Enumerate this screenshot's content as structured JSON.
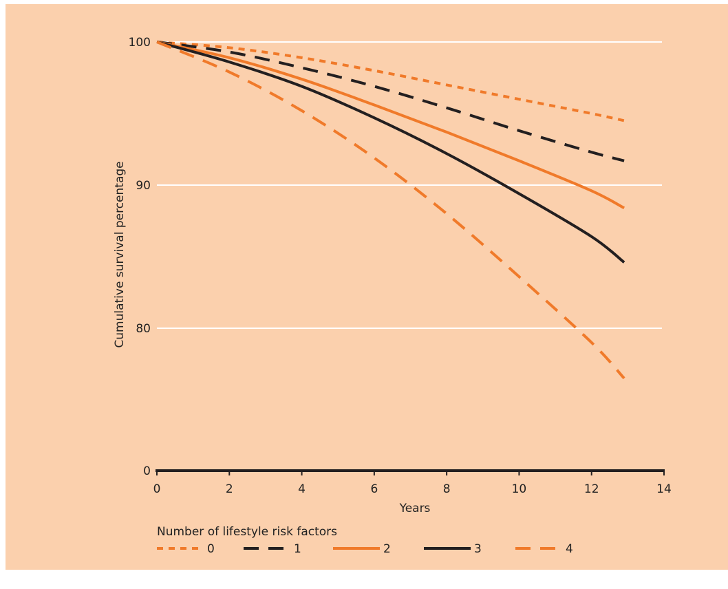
{
  "chart_data": {
    "type": "line",
    "xlabel": "Years",
    "ylabel": "Cumulative survival percentage",
    "xlim": [
      0,
      14
    ],
    "ylim": [
      0,
      100
    ],
    "y_scale": "broken: 0 then 75-100",
    "x_ticks": [
      "0",
      "2",
      "4",
      "6",
      "8",
      "10",
      "12",
      "14"
    ],
    "y_ticks": [
      "0",
      "80",
      "90",
      "100"
    ],
    "grid": "horizontal white lines at 80, 90, 100",
    "legend": {
      "title": "Number of lifestyle risk factors",
      "placement": "bottom",
      "entries": [
        "0",
        "1",
        "2",
        "3",
        "4"
      ]
    },
    "series": [
      {
        "name": "0",
        "color": "#f07a2a",
        "dash": "dotted",
        "x": [
          0,
          2,
          4,
          6,
          8,
          10,
          12,
          12.9
        ],
        "y": [
          100,
          99.6,
          98.9,
          98.0,
          97.0,
          96.0,
          95.0,
          94.5
        ]
      },
      {
        "name": "1",
        "color": "#231f20",
        "dash": "dashed",
        "x": [
          0,
          2,
          4,
          6,
          8,
          10,
          12,
          12.9
        ],
        "y": [
          100,
          99.3,
          98.2,
          96.9,
          95.4,
          93.8,
          92.3,
          91.7
        ]
      },
      {
        "name": "2",
        "color": "#f07a2a",
        "dash": "solid",
        "x": [
          0,
          2,
          4,
          6,
          8,
          10,
          12,
          12.9
        ],
        "y": [
          100,
          98.9,
          97.4,
          95.6,
          93.7,
          91.7,
          89.6,
          88.4
        ]
      },
      {
        "name": "3",
        "color": "#231f20",
        "dash": "solid",
        "x": [
          0,
          2,
          4,
          6,
          8,
          10,
          12,
          12.9
        ],
        "y": [
          100,
          98.6,
          96.9,
          94.7,
          92.2,
          89.4,
          86.4,
          84.6
        ]
      },
      {
        "name": "4",
        "color": "#f07a2a",
        "dash": "dashed",
        "x": [
          0,
          2,
          4,
          6,
          8,
          10,
          12,
          12.9
        ],
        "y": [
          100,
          97.9,
          95.2,
          91.9,
          88.0,
          83.6,
          79.0,
          76.5
        ]
      }
    ]
  }
}
